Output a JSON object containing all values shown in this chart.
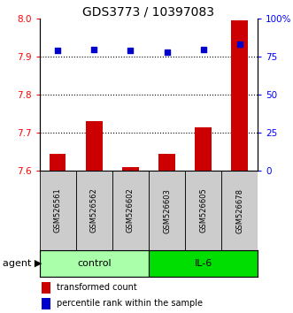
{
  "title": "GDS3773 / 10397083",
  "samples": [
    "GSM526561",
    "GSM526562",
    "GSM526602",
    "GSM526603",
    "GSM526605",
    "GSM526678"
  ],
  "groups": [
    "control",
    "control",
    "control",
    "IL-6",
    "IL-6",
    "IL-6"
  ],
  "bar_values": [
    7.645,
    7.73,
    7.61,
    7.645,
    7.715,
    7.995
  ],
  "scatter_values": [
    79,
    80,
    79,
    78,
    80,
    83
  ],
  "ylim_left": [
    7.6,
    8.0
  ],
  "ylim_right": [
    0,
    100
  ],
  "yticks_left": [
    7.6,
    7.7,
    7.8,
    7.9,
    8.0
  ],
  "yticks_right": [
    0,
    25,
    50,
    75,
    100
  ],
  "ytick_labels_right": [
    "0",
    "25",
    "50",
    "75",
    "100%"
  ],
  "bar_color": "#cc0000",
  "scatter_color": "#0000cc",
  "bar_bottom": 7.6,
  "control_color": "#aaffaa",
  "il6_color": "#00dd00",
  "control_label": "control",
  "il6_label": "IL-6",
  "agent_label": "agent",
  "legend_bar_label": "transformed count",
  "legend_scatter_label": "percentile rank within the sample",
  "title_fontsize": 10,
  "tick_fontsize": 7.5,
  "sample_fontsize": 6,
  "agent_fontsize": 8,
  "legend_fontsize": 7
}
